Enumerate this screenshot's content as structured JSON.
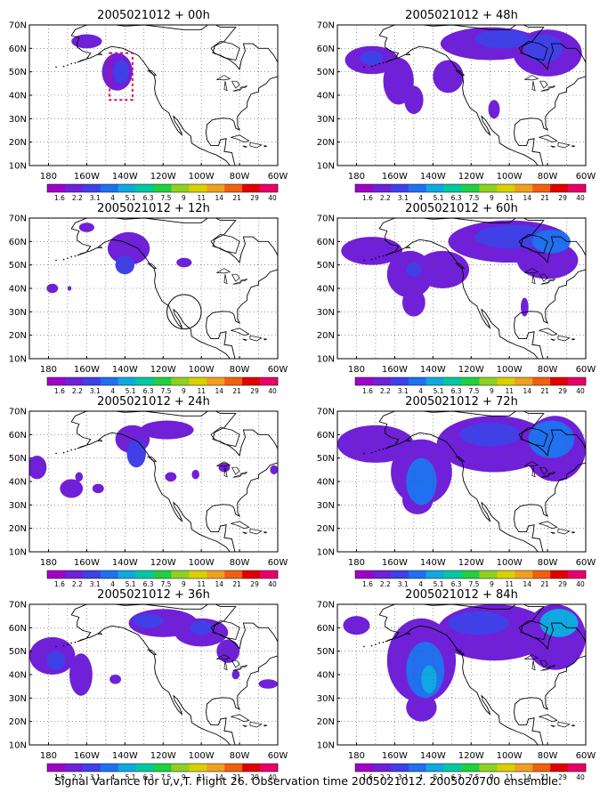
{
  "figure": {
    "caption": "Signal Variance for u,v,T. Flight 26. Observation time 2005021012. 2005020700 ensemble."
  },
  "colorbar": {
    "levels": [
      "1.6",
      "2.2",
      "3.1",
      "4",
      "5.1",
      "6.3",
      "7.5",
      "9",
      "11",
      "14",
      "21",
      "29",
      "40"
    ],
    "colors": [
      "#a000c8",
      "#7020d8",
      "#4040e8",
      "#2070f0",
      "#10a8e0",
      "#00c8a0",
      "#20d040",
      "#90d020",
      "#d8d000",
      "#f0a020",
      "#f06010",
      "#e00000",
      "#e8006a"
    ]
  },
  "chart_data": [
    {
      "type": "heatmap",
      "title": "2005021012 + 00h",
      "x_ticks": [
        "180",
        "160W",
        "140W",
        "120W",
        "100W",
        "80W",
        "60W"
      ],
      "y_ticks": [
        "10N",
        "20N",
        "30N",
        "40N",
        "50N",
        "60N",
        "70N"
      ],
      "xlim": [
        -190,
        -60
      ],
      "ylim": [
        10,
        70
      ],
      "grid": true,
      "blobs": [
        {
          "lon": -160,
          "lat": 63,
          "rx": 8,
          "ry": 3,
          "level": 1
        },
        {
          "lon": -144,
          "lat": 50,
          "rx": 8,
          "ry": 8,
          "level": 1
        },
        {
          "lon": -142,
          "lat": 50,
          "rx": 4,
          "ry": 5,
          "level": 2
        }
      ],
      "obs_box": {
        "lon": [
          -148,
          -136
        ],
        "lat": [
          38,
          58
        ]
      }
    },
    {
      "type": "heatmap",
      "title": "2005021012 + 12h",
      "x_ticks": [
        "180",
        "160W",
        "140W",
        "120W",
        "100W",
        "80W",
        "60W"
      ],
      "y_ticks": [
        "10N",
        "20N",
        "30N",
        "40N",
        "50N",
        "60N",
        "70N"
      ],
      "xlim": [
        -190,
        -60
      ],
      "ylim": [
        10,
        70
      ],
      "grid": true,
      "blobs": [
        {
          "lon": -160,
          "lat": 66,
          "rx": 4,
          "ry": 2,
          "level": 1
        },
        {
          "lon": -138,
          "lat": 57,
          "rx": 11,
          "ry": 7,
          "level": 1
        },
        {
          "lon": -140,
          "lat": 50,
          "rx": 5,
          "ry": 4,
          "level": 2
        },
        {
          "lon": -109,
          "lat": 51,
          "rx": 4,
          "ry": 2,
          "level": 1
        },
        {
          "lon": -178,
          "lat": 40,
          "rx": 3,
          "ry": 2,
          "level": 1
        },
        {
          "lon": -169,
          "lat": 40,
          "rx": 1,
          "ry": 1,
          "level": 1
        }
      ],
      "circle": {
        "lon": -109,
        "lat": 30,
        "r": 9
      }
    },
    {
      "type": "heatmap",
      "title": "2005021012 + 24h",
      "x_ticks": [
        "180",
        "160W",
        "140W",
        "120W",
        "100W",
        "80W",
        "60W"
      ],
      "y_ticks": [
        "10N",
        "20N",
        "30N",
        "40N",
        "50N",
        "60N",
        "70N"
      ],
      "xlim": [
        -190,
        -60
      ],
      "ylim": [
        10,
        70
      ],
      "grid": true,
      "blobs": [
        {
          "lon": -186,
          "lat": 46,
          "rx": 5,
          "ry": 5,
          "level": 1
        },
        {
          "lon": -168,
          "lat": 37,
          "rx": 6,
          "ry": 4,
          "level": 1
        },
        {
          "lon": -154,
          "lat": 37,
          "rx": 3,
          "ry": 2,
          "level": 1
        },
        {
          "lon": -164,
          "lat": 42,
          "rx": 2,
          "ry": 2,
          "level": 1
        },
        {
          "lon": -136,
          "lat": 58,
          "rx": 9,
          "ry": 6,
          "level": 1
        },
        {
          "lon": -118,
          "lat": 62,
          "rx": 14,
          "ry": 4,
          "level": 1
        },
        {
          "lon": -134,
          "lat": 52,
          "rx": 5,
          "ry": 6,
          "level": 2
        },
        {
          "lon": -116,
          "lat": 42,
          "rx": 3,
          "ry": 2,
          "level": 1
        },
        {
          "lon": -103,
          "lat": 43,
          "rx": 2,
          "ry": 2,
          "level": 1
        },
        {
          "lon": -88,
          "lat": 46,
          "rx": 3,
          "ry": 2,
          "level": 1
        },
        {
          "lon": -62,
          "lat": 45,
          "rx": 2,
          "ry": 2,
          "level": 1
        }
      ]
    },
    {
      "type": "heatmap",
      "title": "2005021012 + 36h",
      "x_ticks": [
        "180",
        "160W",
        "140W",
        "120W",
        "100W",
        "80W",
        "60W"
      ],
      "y_ticks": [
        "10N",
        "20N",
        "30N",
        "40N",
        "50N",
        "60N",
        "70N"
      ],
      "xlim": [
        -190,
        -60
      ],
      "ylim": [
        10,
        70
      ],
      "grid": true,
      "blobs": [
        {
          "lon": -178,
          "lat": 48,
          "rx": 12,
          "ry": 8,
          "level": 1
        },
        {
          "lon": -163,
          "lat": 40,
          "rx": 6,
          "ry": 9,
          "level": 1
        },
        {
          "lon": -176,
          "lat": 46,
          "rx": 5,
          "ry": 4,
          "level": 2
        },
        {
          "lon": -145,
          "lat": 38,
          "rx": 3,
          "ry": 2,
          "level": 1
        },
        {
          "lon": -120,
          "lat": 62,
          "rx": 18,
          "ry": 6,
          "level": 1
        },
        {
          "lon": -100,
          "lat": 58,
          "rx": 14,
          "ry": 6,
          "level": 1
        },
        {
          "lon": -128,
          "lat": 63,
          "rx": 8,
          "ry": 3,
          "level": 2
        },
        {
          "lon": -100,
          "lat": 60,
          "rx": 6,
          "ry": 3,
          "level": 2
        },
        {
          "lon": -86,
          "lat": 50,
          "rx": 6,
          "ry": 5,
          "level": 1
        },
        {
          "lon": -65,
          "lat": 36,
          "rx": 5,
          "ry": 2,
          "level": 1
        },
        {
          "lon": -82,
          "lat": 40,
          "rx": 2,
          "ry": 2,
          "level": 1
        }
      ]
    },
    {
      "type": "heatmap",
      "title": "2005021012 + 48h",
      "x_ticks": [
        "180",
        "160W",
        "140W",
        "120W",
        "100W",
        "80W",
        "60W"
      ],
      "y_ticks": [
        "10N",
        "20N",
        "30N",
        "40N",
        "50N",
        "60N",
        "70N"
      ],
      "xlim": [
        -190,
        -60
      ],
      "ylim": [
        10,
        70
      ],
      "grid": true,
      "blobs": [
        {
          "lon": -172,
          "lat": 55,
          "rx": 14,
          "ry": 6,
          "level": 1
        },
        {
          "lon": -158,
          "lat": 46,
          "rx": 8,
          "ry": 10,
          "level": 1
        },
        {
          "lon": -150,
          "lat": 38,
          "rx": 5,
          "ry": 6,
          "level": 1
        },
        {
          "lon": -132,
          "lat": 48,
          "rx": 8,
          "ry": 7,
          "level": 1
        },
        {
          "lon": -110,
          "lat": 62,
          "rx": 26,
          "ry": 7,
          "level": 1
        },
        {
          "lon": -80,
          "lat": 58,
          "rx": 18,
          "ry": 10,
          "level": 1
        },
        {
          "lon": -104,
          "lat": 64,
          "rx": 14,
          "ry": 4,
          "level": 2
        },
        {
          "lon": -82,
          "lat": 60,
          "rx": 10,
          "ry": 6,
          "level": 2
        },
        {
          "lon": -172,
          "lat": 56,
          "rx": 6,
          "ry": 3,
          "level": 2
        },
        {
          "lon": -108,
          "lat": 34,
          "rx": 3,
          "ry": 4,
          "level": 1
        }
      ]
    },
    {
      "type": "heatmap",
      "title": "2005021012 + 60h",
      "x_ticks": [
        "180",
        "160W",
        "140W",
        "120W",
        "100W",
        "80W",
        "60W"
      ],
      "y_ticks": [
        "10N",
        "20N",
        "30N",
        "40N",
        "50N",
        "60N",
        "70N"
      ],
      "xlim": [
        -190,
        -60
      ],
      "ylim": [
        10,
        70
      ],
      "grid": true,
      "blobs": [
        {
          "lon": -172,
          "lat": 56,
          "rx": 16,
          "ry": 6,
          "level": 1
        },
        {
          "lon": -152,
          "lat": 46,
          "rx": 12,
          "ry": 10,
          "level": 1
        },
        {
          "lon": -150,
          "lat": 34,
          "rx": 6,
          "ry": 6,
          "level": 1
        },
        {
          "lon": -135,
          "lat": 48,
          "rx": 14,
          "ry": 8,
          "level": 1
        },
        {
          "lon": -100,
          "lat": 60,
          "rx": 32,
          "ry": 9,
          "level": 1
        },
        {
          "lon": -80,
          "lat": 52,
          "rx": 16,
          "ry": 8,
          "level": 1
        },
        {
          "lon": -98,
          "lat": 62,
          "rx": 20,
          "ry": 5,
          "level": 2
        },
        {
          "lon": -78,
          "lat": 60,
          "rx": 10,
          "ry": 5,
          "level": 3
        },
        {
          "lon": -150,
          "lat": 48,
          "rx": 4,
          "ry": 3,
          "level": 2
        },
        {
          "lon": -92,
          "lat": 32,
          "rx": 2,
          "ry": 4,
          "level": 1
        }
      ]
    },
    {
      "type": "heatmap",
      "title": "2005021012 + 72h",
      "x_ticks": [
        "180",
        "160W",
        "140W",
        "120W",
        "100W",
        "80W",
        "60W"
      ],
      "y_ticks": [
        "10N",
        "20N",
        "30N",
        "40N",
        "50N",
        "60N",
        "70N"
      ],
      "xlim": [
        -190,
        -60
      ],
      "ylim": [
        10,
        70
      ],
      "grid": true,
      "blobs": [
        {
          "lon": -170,
          "lat": 56,
          "rx": 20,
          "ry": 8,
          "level": 1
        },
        {
          "lon": -146,
          "lat": 44,
          "rx": 16,
          "ry": 14,
          "level": 1
        },
        {
          "lon": -148,
          "lat": 32,
          "rx": 8,
          "ry": 6,
          "level": 1
        },
        {
          "lon": -108,
          "lat": 56,
          "rx": 30,
          "ry": 12,
          "level": 1
        },
        {
          "lon": -76,
          "lat": 54,
          "rx": 16,
          "ry": 14,
          "level": 1
        },
        {
          "lon": -146,
          "lat": 40,
          "rx": 8,
          "ry": 10,
          "level": 3
        },
        {
          "lon": -78,
          "lat": 58,
          "rx": 12,
          "ry": 8,
          "level": 3
        },
        {
          "lon": -110,
          "lat": 60,
          "rx": 16,
          "ry": 5,
          "level": 2
        }
      ]
    },
    {
      "type": "heatmap",
      "title": "2005021012 + 84h",
      "x_ticks": [
        "180",
        "160W",
        "140W",
        "120W",
        "100W",
        "80W",
        "60W"
      ],
      "y_ticks": [
        "10N",
        "20N",
        "30N",
        "40N",
        "50N",
        "60N",
        "70N"
      ],
      "xlim": [
        -190,
        -60
      ],
      "ylim": [
        10,
        70
      ],
      "grid": true,
      "blobs": [
        {
          "lon": -180,
          "lat": 61,
          "rx": 7,
          "ry": 4,
          "level": 1
        },
        {
          "lon": -146,
          "lat": 46,
          "rx": 18,
          "ry": 18,
          "level": 1
        },
        {
          "lon": -146,
          "lat": 26,
          "rx": 8,
          "ry": 6,
          "level": 1
        },
        {
          "lon": -108,
          "lat": 58,
          "rx": 30,
          "ry": 12,
          "level": 1
        },
        {
          "lon": -76,
          "lat": 56,
          "rx": 16,
          "ry": 14,
          "level": 1
        },
        {
          "lon": -144,
          "lat": 42,
          "rx": 10,
          "ry": 12,
          "level": 3
        },
        {
          "lon": -142,
          "lat": 38,
          "rx": 4,
          "ry": 6,
          "level": 4
        },
        {
          "lon": -74,
          "lat": 62,
          "rx": 10,
          "ry": 6,
          "level": 4
        },
        {
          "lon": -116,
          "lat": 62,
          "rx": 16,
          "ry": 5,
          "level": 2
        }
      ]
    }
  ]
}
